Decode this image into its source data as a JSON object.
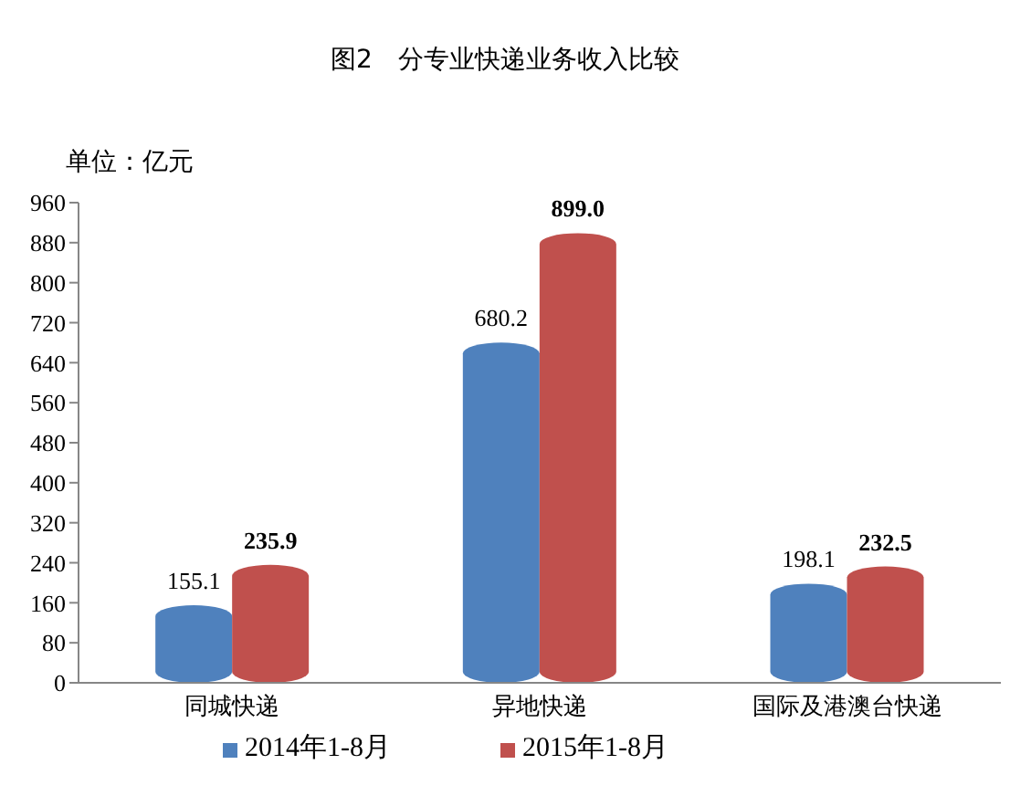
{
  "chart_data": {
    "type": "bar",
    "title": "图2　分专业快递业务收入比较",
    "ylabel": "单位：亿元",
    "categories": [
      "同城快递",
      "异地快递",
      "国际及港澳台快递"
    ],
    "series": [
      {
        "name": "2014年1-8月",
        "color": "#4f81bd",
        "values": [
          155.1,
          680.2,
          198.1
        ],
        "value_labels": [
          "155.1",
          "680.2",
          "198.1"
        ]
      },
      {
        "name": "2015年1-8月",
        "color": "#c0504d",
        "values": [
          235.9,
          899.0,
          232.5
        ],
        "value_labels": [
          "235.9",
          "899.0",
          "232.5"
        ]
      }
    ],
    "ylim": [
      0,
      960
    ],
    "yticks": [
      0,
      80,
      160,
      240,
      320,
      400,
      480,
      560,
      640,
      720,
      800,
      880,
      960
    ],
    "legend": "bottom"
  }
}
